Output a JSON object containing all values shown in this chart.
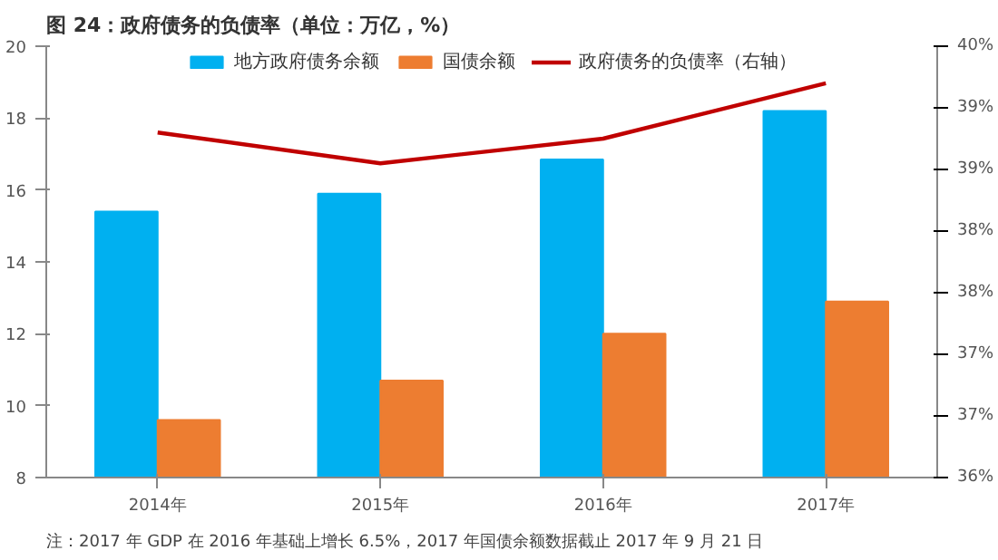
{
  "chart_data": {
    "type": "bar",
    "title": "图 24：政府债务的负债率（单位：万亿，%）",
    "categories": [
      "2014年",
      "2015年",
      "2016年",
      "2017年"
    ],
    "series": [
      {
        "name": "地方政府债务余额",
        "color": "#00b0f0",
        "values": [
          15.4,
          15.9,
          16.85,
          18.2
        ]
      },
      {
        "name": "国债余额",
        "color": "#ed7d31",
        "values": [
          9.6,
          10.7,
          12.0,
          12.9
        ]
      },
      {
        "name": "政府债务的负债率（右轴）",
        "type": "line",
        "axis": "y2",
        "color": "#c00000",
        "values": [
          38.8,
          38.55,
          38.75,
          39.2
        ]
      }
    ],
    "ylim": [
      8,
      20
    ],
    "yticks": [
      8,
      10,
      12,
      14,
      16,
      18,
      20
    ],
    "y2lim": [
      36,
      39.5
    ],
    "y2ticks": [
      {
        "value": 36,
        "label": "36%"
      },
      {
        "value": 36.5,
        "label": "37%"
      },
      {
        "value": 37,
        "label": "37%"
      },
      {
        "value": 37.5,
        "label": "38%"
      },
      {
        "value": 38,
        "label": "38%"
      },
      {
        "value": 38.5,
        "label": "39%"
      },
      {
        "value": 39,
        "label": "39%"
      },
      {
        "value": 39.5,
        "label": "40%"
      }
    ],
    "legend": "top",
    "grid": false,
    "annotations": [
      "注：2017 年 GDP 在 2016 年基础上增长 6.5%，2017 年国债余额数据截止 2017 年 9 月 21 日"
    ]
  }
}
